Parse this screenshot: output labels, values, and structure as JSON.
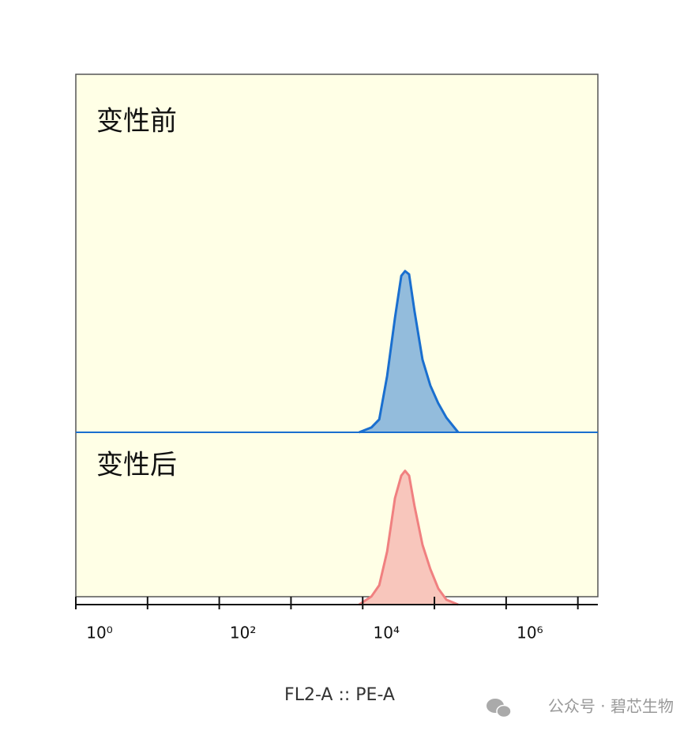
{
  "chart_data": {
    "type": "offset_histogram",
    "xlabel": "FL2-A :: PE-A",
    "xscale": "log",
    "xlim": [
      1,
      19000000
    ],
    "xticks": [
      {
        "value": 1,
        "label": "10⁰"
      },
      {
        "value": 100,
        "label": "10²"
      },
      {
        "value": 10000,
        "label": "10⁴"
      },
      {
        "value": 1000000,
        "label": "10⁶"
      }
    ],
    "minor_xticks": [
      10,
      1000,
      100000,
      10000000
    ],
    "ylim": [
      0,
      100
    ],
    "x": [
      8900,
      13200,
      17000,
      21900,
      28200,
      34500,
      39000,
      44300,
      52900,
      68300,
      87700,
      113000,
      147000,
      214000
    ],
    "series": [
      {
        "name": "变性前",
        "color": "#1a6fcf",
        "fill": "#93bcdc",
        "values": [
          0,
          3,
          8,
          35,
          71,
          97,
          100,
          98,
          75,
          45,
          29,
          18,
          9,
          0
        ]
      },
      {
        "name": "变性后",
        "color": "#f08080",
        "fill": "#f8c6bc",
        "values": [
          0,
          5,
          12,
          33,
          66,
          80,
          83,
          80,
          61,
          37,
          22,
          10,
          3,
          0
        ]
      }
    ],
    "watermark": "公众号 · 碧芯生物"
  }
}
